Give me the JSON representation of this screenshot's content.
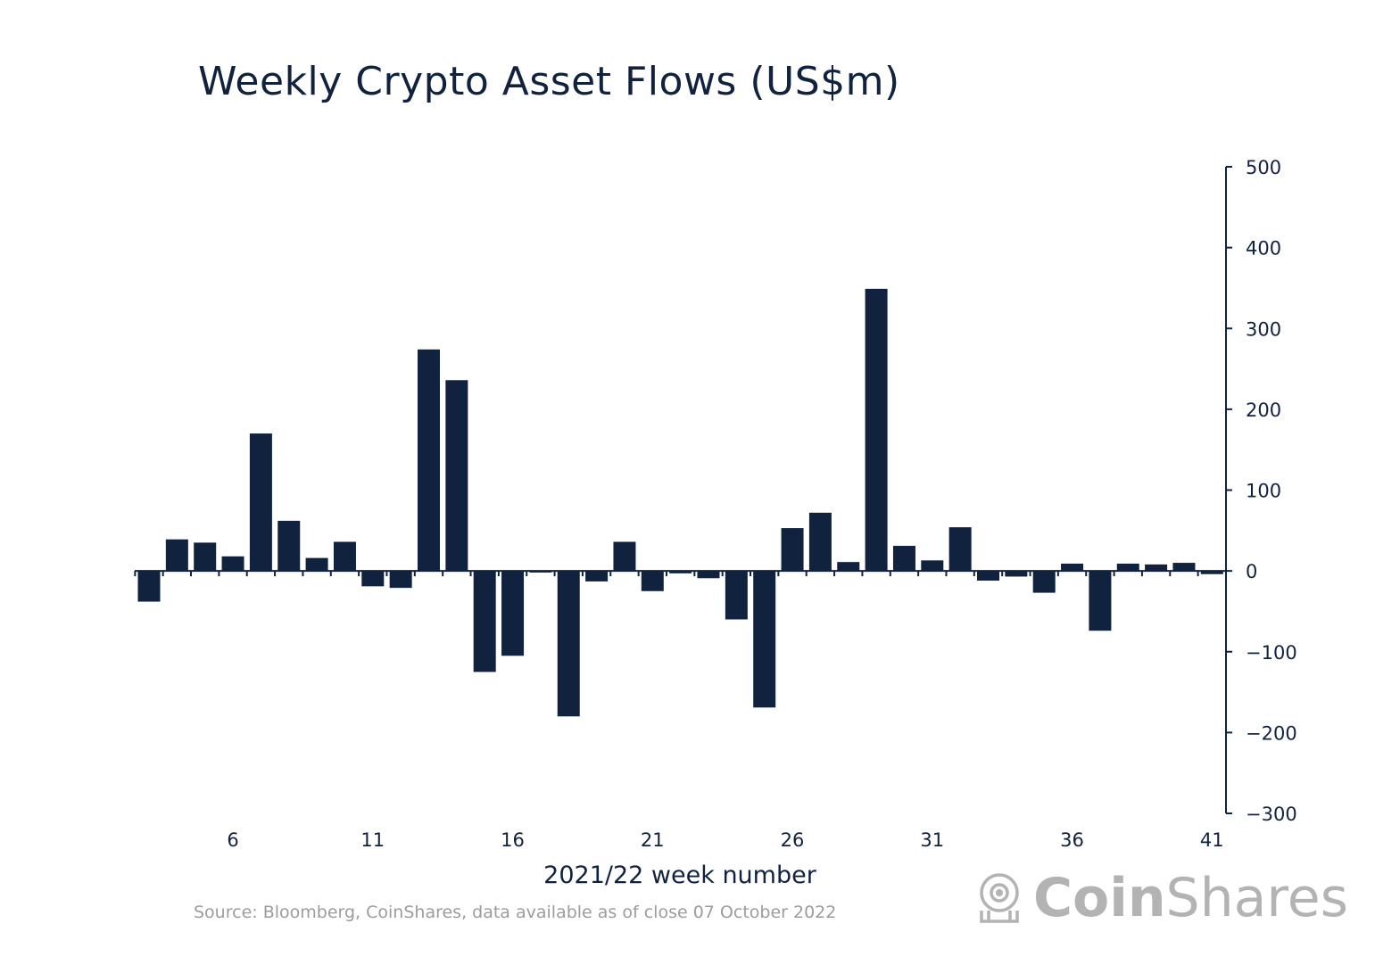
{
  "chart_data": {
    "type": "bar",
    "title": "Weekly Crypto Asset Flows (US$m)",
    "xlabel": "2021/22 week number",
    "ylabel": "",
    "x": [
      3,
      4,
      5,
      6,
      7,
      8,
      9,
      10,
      11,
      12,
      13,
      14,
      15,
      16,
      17,
      18,
      19,
      20,
      21,
      22,
      23,
      24,
      25,
      26,
      27,
      28,
      29,
      30,
      31,
      32,
      33,
      34,
      35,
      36,
      37,
      38,
      39,
      40,
      41
    ],
    "values": [
      -38,
      39,
      35,
      18,
      170,
      62,
      16,
      36,
      -19,
      -21,
      274,
      236,
      -125,
      -105,
      -2,
      -180,
      -13,
      36,
      -25,
      -3,
      -9,
      -60,
      -169,
      53,
      72,
      11,
      349,
      31,
      13,
      54,
      -12,
      -7,
      -27,
      9,
      -74,
      9,
      8,
      10,
      -4
    ],
    "xticks": [
      6,
      11,
      16,
      21,
      26,
      31,
      36,
      41
    ],
    "yticks": [
      500,
      400,
      300,
      200,
      100,
      0,
      -100,
      -200,
      -300
    ],
    "ylim": [
      -300,
      500
    ],
    "y_axis_side": "right",
    "grid": false,
    "bar_color": "#11223f"
  },
  "source_note": "Source: Bloomberg, CoinShares, data available as of close 07 October 2022",
  "logo": {
    "part1": "Coin",
    "part2": "Shares",
    "color": "#b3b3b3"
  }
}
